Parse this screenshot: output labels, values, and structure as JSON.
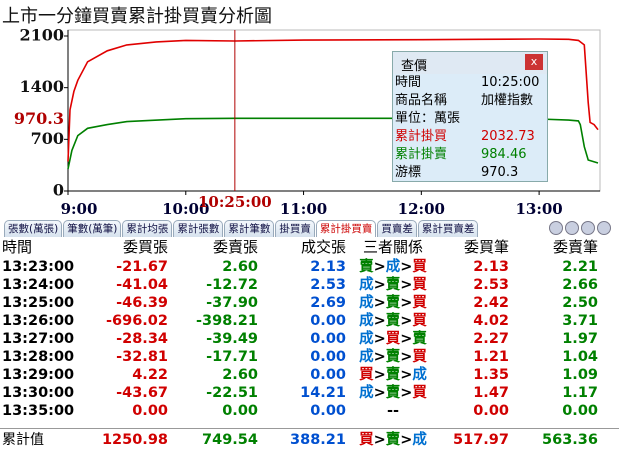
{
  "title": "上市一分鐘買賣累計掛買賣分析圖",
  "chart_data": {
    "type": "line",
    "xlim": [
      "9:00",
      "13:30"
    ],
    "xticks": [
      "9:00",
      "10:00",
      "11:00",
      "12:00",
      "13:00"
    ],
    "ylim": [
      0,
      2100
    ],
    "yticks": [
      0,
      700,
      1400,
      2100
    ],
    "cursor": {
      "time": "10:25:00",
      "value": 970.3,
      "color": "#b00000"
    },
    "series": [
      {
        "color": "#e00000",
        "x": [
          "9:00",
          "9:01",
          "9:03",
          "9:05",
          "9:10",
          "9:20",
          "9:30",
          "9:45",
          "10:00",
          "10:25",
          "11:00",
          "12:00",
          "12:30",
          "13:00",
          "13:15",
          "13:20",
          "13:23",
          "13:25",
          "13:26",
          "13:28",
          "13:30"
        ],
        "values": [
          400,
          1100,
          1350,
          1500,
          1750,
          1900,
          1980,
          2020,
          2040,
          2032.73,
          2045,
          2050,
          2055,
          2060,
          2055,
          2040,
          1980,
          1200,
          930,
          900,
          830
        ]
      },
      {
        "color": "#008000",
        "x": [
          "9:00",
          "9:02",
          "9:05",
          "9:10",
          "9:20",
          "9:30",
          "10:00",
          "10:25",
          "11:00",
          "12:00",
          "13:00",
          "13:15",
          "13:20",
          "13:21",
          "13:23",
          "13:25",
          "13:30"
        ],
        "values": [
          300,
          550,
          750,
          850,
          900,
          940,
          980,
          984.46,
          985,
          985,
          975,
          960,
          950,
          900,
          600,
          420,
          380
        ]
      }
    ]
  },
  "tooltip": {
    "title": "查價",
    "close": "x",
    "rows": [
      {
        "label": "時間",
        "value": "10:25:00"
      },
      {
        "label": "商品名稱",
        "value": "加權指數"
      },
      {
        "label": "單位：萬張"
      },
      {
        "label": "累計掛買",
        "value": "2032.73",
        "color": "#d00000"
      },
      {
        "label": "累計掛賣",
        "value": "984.46",
        "color": "#008000"
      },
      {
        "label": "游標",
        "value": "970.3"
      }
    ]
  },
  "tabs": {
    "items": [
      "張數(萬張)",
      "筆數(萬筆)",
      "累計均張",
      "累計張數",
      "累計筆數",
      "掛買賣",
      "累計掛買賣",
      "買賣差",
      "累計買賣差"
    ],
    "selected": 6
  },
  "table": {
    "columns": [
      "時間",
      "委買張",
      "委賣張",
      "成交張",
      "三者關係",
      "委買筆",
      "委賣筆"
    ],
    "rows": [
      [
        "13:23:00",
        "-21.67",
        "2.60",
        "2.13",
        "賣>成>買",
        "2.13",
        "2.21"
      ],
      [
        "13:24:00",
        "-41.04",
        "-12.72",
        "2.53",
        "成>賣>買",
        "2.53",
        "2.66"
      ],
      [
        "13:25:00",
        "-46.39",
        "-37.90",
        "2.69",
        "成>賣>買",
        "2.42",
        "2.50"
      ],
      [
        "13:26:00",
        "-696.02",
        "-398.21",
        "0.00",
        "成>賣>買",
        "4.02",
        "3.71"
      ],
      [
        "13:27:00",
        "-28.34",
        "-39.49",
        "0.00",
        "成>買>賣",
        "2.27",
        "1.97"
      ],
      [
        "13:28:00",
        "-32.81",
        "-17.71",
        "0.00",
        "成>賣>買",
        "1.21",
        "1.04"
      ],
      [
        "13:29:00",
        "4.22",
        "2.60",
        "0.00",
        "買>賣>成",
        "1.35",
        "1.09"
      ],
      [
        "13:30:00",
        "-43.67",
        "-22.51",
        "14.21",
        "成>賣>買",
        "1.47",
        "1.17"
      ],
      [
        "13:35:00",
        "0.00",
        "0.00",
        "0.00",
        "--",
        "0.00",
        "0.00"
      ]
    ],
    "footer": [
      "累計值",
      "1250.98",
      "749.54",
      "388.21",
      "買>賣>成",
      "517.97",
      "563.36"
    ]
  }
}
